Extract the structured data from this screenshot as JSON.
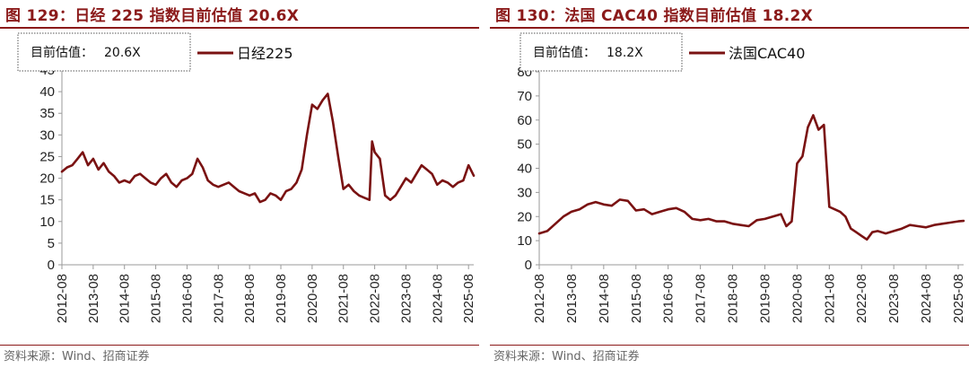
{
  "colors": {
    "accent": "#8b1a1a",
    "series": "#7a1212",
    "axis": "#9a9a9a"
  },
  "charts": [
    {
      "fig_title": "图 129：日经 225 指数目前估值 20.6X",
      "source": "资料来源：Wind、招商证券",
      "annotation": {
        "label": "目前估值：",
        "value": "20.6X"
      }
    },
    {
      "fig_title": "图 130：法国 CAC40 指数目前估值 18.2X",
      "source": "资料来源：Wind、招商证券",
      "annotation": {
        "label": "目前估值：",
        "value": "18.2X"
      }
    }
  ],
  "chart_data": [
    {
      "type": "line",
      "title": "图 129：日经 225 指数目前估值 20.6X",
      "legend": "日经225",
      "legend_placement": "top-left",
      "grid": false,
      "xlabel": "",
      "ylabel": "",
      "x_tick_labels": [
        "2012-08",
        "2013-08",
        "2014-08",
        "2015-08",
        "2016-08",
        "2017-08",
        "2018-08",
        "2019-08",
        "2020-08",
        "2021-08",
        "2022-08",
        "2023-08",
        "2024-08",
        "2025-08"
      ],
      "yticks": [
        0,
        5,
        10,
        15,
        20,
        25,
        30,
        35,
        40,
        45
      ],
      "xlim": [
        "2012-08",
        "2025-10"
      ],
      "ylim": [
        0,
        45
      ],
      "series": [
        {
          "name": "日经225",
          "x": [
            "2012-08",
            "2012-10",
            "2012-12",
            "2013-02",
            "2013-04",
            "2013-06",
            "2013-08",
            "2013-10",
            "2013-12",
            "2014-02",
            "2014-04",
            "2014-06",
            "2014-08",
            "2014-10",
            "2014-12",
            "2015-02",
            "2015-04",
            "2015-06",
            "2015-08",
            "2015-10",
            "2015-12",
            "2016-02",
            "2016-04",
            "2016-06",
            "2016-08",
            "2016-10",
            "2016-12",
            "2017-02",
            "2017-04",
            "2017-06",
            "2017-08",
            "2017-10",
            "2017-12",
            "2018-02",
            "2018-04",
            "2018-06",
            "2018-08",
            "2018-10",
            "2018-12",
            "2019-02",
            "2019-04",
            "2019-06",
            "2019-08",
            "2019-10",
            "2019-12",
            "2020-02",
            "2020-04",
            "2020-06",
            "2020-08",
            "2020-10",
            "2020-12",
            "2021-02",
            "2021-04",
            "2021-06",
            "2021-08",
            "2021-10",
            "2021-12",
            "2022-02",
            "2022-04",
            "2022-06",
            "2022-07",
            "2022-08",
            "2022-10",
            "2022-12",
            "2023-02",
            "2023-04",
            "2023-06",
            "2023-08",
            "2023-10",
            "2023-12",
            "2024-02",
            "2024-04",
            "2024-06",
            "2024-08",
            "2024-10",
            "2024-12",
            "2025-02",
            "2025-04",
            "2025-06",
            "2025-08",
            "2025-10"
          ],
          "y": [
            21.5,
            22.5,
            23.0,
            24.5,
            26.0,
            23.0,
            24.5,
            22.0,
            23.5,
            21.5,
            20.5,
            19.0,
            19.5,
            19.0,
            20.5,
            21.0,
            20.0,
            19.0,
            18.5,
            20.0,
            21.0,
            19.0,
            18.0,
            19.5,
            20.0,
            21.0,
            24.5,
            22.5,
            19.5,
            18.5,
            18.0,
            18.5,
            19.0,
            18.0,
            17.0,
            16.5,
            16.0,
            16.5,
            14.5,
            15.0,
            16.5,
            16.0,
            15.0,
            17.0,
            17.5,
            19.0,
            22.0,
            30.0,
            37.0,
            36.0,
            38.0,
            39.5,
            33.0,
            25.0,
            17.5,
            18.5,
            17.0,
            16.0,
            15.5,
            15.0,
            28.5,
            26.0,
            24.5,
            16.0,
            15.0,
            16.0,
            18.0,
            20.0,
            19.0,
            21.0,
            23.0,
            22.0,
            21.0,
            18.5,
            19.5,
            19.0,
            18.0,
            19.0,
            19.5,
            23.0,
            20.6
          ]
        }
      ]
    },
    {
      "type": "line",
      "title": "图 130：法国 CAC40 指数目前估值 18.2X",
      "legend": "法国CAC40",
      "legend_placement": "top-left",
      "grid": false,
      "xlabel": "",
      "ylabel": "",
      "x_tick_labels": [
        "2012-08",
        "2013-08",
        "2014-08",
        "2015-08",
        "2016-08",
        "2017-08",
        "2018-08",
        "2019-08",
        "2020-08",
        "2021-08",
        "2022-08",
        "2023-08",
        "2024-08",
        "2025-08"
      ],
      "yticks": [
        0,
        10,
        20,
        30,
        40,
        50,
        60,
        70,
        80
      ],
      "xlim": [
        "2012-08",
        "2025-10"
      ],
      "ylim": [
        0,
        80
      ],
      "series": [
        {
          "name": "法国CAC40",
          "x": [
            "2012-08",
            "2012-11",
            "2013-02",
            "2013-05",
            "2013-08",
            "2013-11",
            "2014-02",
            "2014-05",
            "2014-08",
            "2014-11",
            "2015-02",
            "2015-05",
            "2015-08",
            "2015-11",
            "2016-02",
            "2016-05",
            "2016-08",
            "2016-11",
            "2017-02",
            "2017-05",
            "2017-08",
            "2017-11",
            "2018-02",
            "2018-05",
            "2018-08",
            "2018-11",
            "2019-02",
            "2019-05",
            "2019-08",
            "2019-11",
            "2020-02",
            "2020-04",
            "2020-06",
            "2020-08",
            "2020-10",
            "2020-12",
            "2021-02",
            "2021-04",
            "2021-06",
            "2021-08",
            "2021-10",
            "2021-12",
            "2022-02",
            "2022-04",
            "2022-06",
            "2022-08",
            "2022-10",
            "2022-12",
            "2023-02",
            "2023-05",
            "2023-08",
            "2023-11",
            "2024-02",
            "2024-05",
            "2024-08",
            "2024-11",
            "2025-02",
            "2025-05",
            "2025-08",
            "2025-10"
          ],
          "y": [
            13.0,
            14.0,
            17.0,
            20.0,
            22.0,
            23.0,
            25.0,
            26.0,
            25.0,
            24.5,
            27.0,
            26.5,
            22.5,
            23.0,
            21.0,
            22.0,
            23.0,
            23.5,
            22.0,
            19.0,
            18.5,
            19.0,
            18.0,
            18.0,
            17.0,
            16.5,
            16.0,
            18.5,
            19.0,
            20.0,
            21.0,
            16.0,
            18.0,
            42.0,
            45.0,
            57.0,
            62.0,
            56.0,
            58.0,
            24.0,
            23.0,
            22.0,
            20.0,
            15.0,
            13.5,
            12.0,
            10.5,
            13.5,
            14.0,
            13.0,
            14.0,
            15.0,
            16.5,
            16.0,
            15.5,
            16.5,
            17.0,
            17.5,
            18.0,
            18.2
          ]
        }
      ]
    }
  ]
}
